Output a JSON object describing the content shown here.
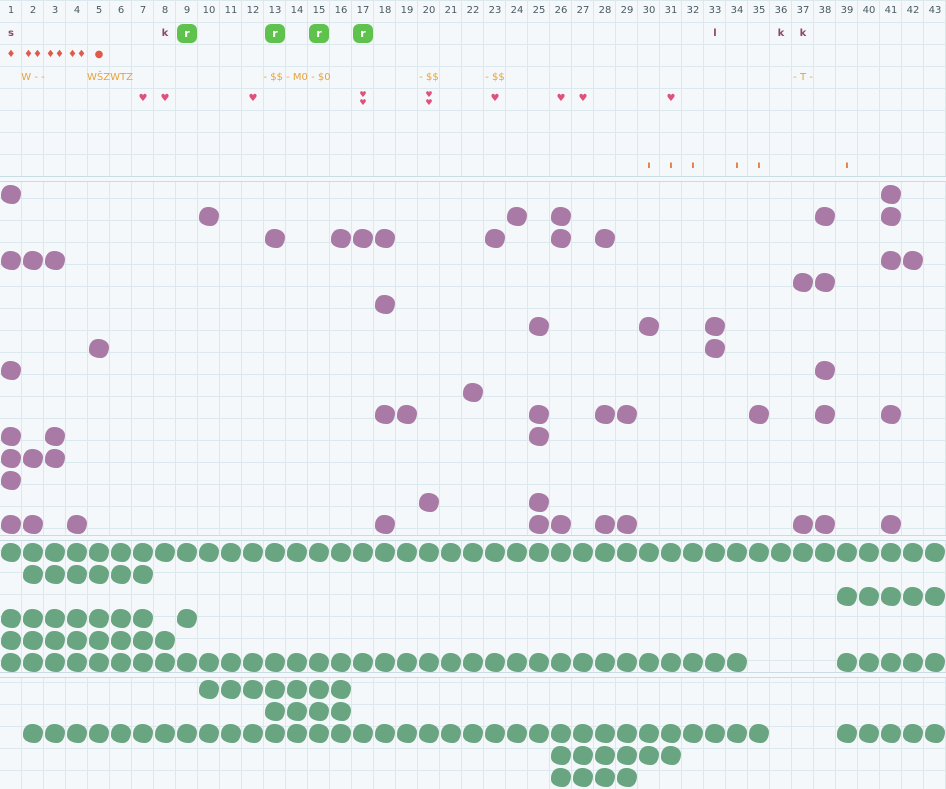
{
  "columns": [
    "1",
    "2",
    "3",
    "4",
    "5",
    "6",
    "7",
    "8",
    "9",
    "10",
    "11",
    "12",
    "13",
    "14",
    "15",
    "16",
    "17",
    "18",
    "19",
    "20",
    "21",
    "22",
    "23",
    "24",
    "25",
    "26",
    "27",
    "28",
    "29",
    "30",
    "31",
    "32",
    "33",
    "34",
    "35",
    "36",
    "37",
    "38",
    "39",
    "40",
    "41",
    "42",
    "43"
  ],
  "palette": {
    "purple_blob": "#a97aa5",
    "green_blob": "#6aa582",
    "green_button": "#5ec24d",
    "heart": "#e0507a",
    "drop": "#e05a4a",
    "orange_text": "#e8a33c",
    "letter": "#8a4a6a",
    "tick": "#e8743c"
  },
  "top_panel": {
    "letters": [
      {
        "col": 1,
        "row": 1,
        "text": "s",
        "kind": "letter"
      },
      {
        "col": 8,
        "row": 1,
        "text": "k",
        "kind": "letter"
      },
      {
        "col": 33,
        "row": 1,
        "text": "l",
        "kind": "letter"
      },
      {
        "col": 36,
        "row": 1,
        "text": "k",
        "kind": "letter"
      },
      {
        "col": 37,
        "row": 1,
        "text": "k",
        "kind": "letter"
      }
    ],
    "buttons": [
      {
        "col": 9,
        "row": 1,
        "text": "r"
      },
      {
        "col": 13,
        "row": 1,
        "text": "r"
      },
      {
        "col": 15,
        "row": 1,
        "text": "r"
      },
      {
        "col": 17,
        "row": 1,
        "text": "r"
      }
    ],
    "drops": [
      {
        "col": 1,
        "row": 2,
        "text": "♦"
      },
      {
        "col": 2,
        "row": 2,
        "text": "♦♦"
      },
      {
        "col": 3,
        "row": 2,
        "text": "♦♦"
      },
      {
        "col": 4,
        "row": 2,
        "text": "♦♦"
      },
      {
        "col": 5,
        "row": 2,
        "text": "●"
      }
    ],
    "orange": [
      {
        "col": 1,
        "row": 3,
        "text": "W - -",
        "span": 3
      },
      {
        "col": 5,
        "row": 3,
        "text": "WŠZWTZ",
        "span": 2
      },
      {
        "col": 13,
        "row": 3,
        "text": "- $$ - M0 - $0",
        "span": 3
      },
      {
        "col": 20,
        "row": 3,
        "text": "- $$",
        "span": 1
      },
      {
        "col": 23,
        "row": 3,
        "text": "- $$",
        "span": 1
      },
      {
        "col": 37,
        "row": 3,
        "text": "- T -",
        "span": 1
      }
    ],
    "hearts": [
      {
        "col": 7,
        "row": 4,
        "text": "♥"
      },
      {
        "col": 8,
        "row": 4,
        "text": "♥"
      },
      {
        "col": 12,
        "row": 4,
        "text": "♥"
      },
      {
        "col": 17,
        "row": 4,
        "text": "♥♥"
      },
      {
        "col": 20,
        "row": 4,
        "text": "♥♥"
      },
      {
        "col": 23,
        "row": 4,
        "text": "♥"
      },
      {
        "col": 26,
        "row": 4,
        "text": "♥"
      },
      {
        "col": 27,
        "row": 4,
        "text": "♥"
      },
      {
        "col": 31,
        "row": 4,
        "text": "♥"
      }
    ],
    "ticks": [
      {
        "col": 30,
        "row": 7,
        "text": "ı"
      },
      {
        "col": 31,
        "row": 7,
        "text": "ı"
      },
      {
        "col": 32,
        "row": 7,
        "text": "ı"
      },
      {
        "col": 34,
        "row": 7,
        "text": "ı"
      },
      {
        "col": 35,
        "row": 7,
        "text": "ı"
      },
      {
        "col": 39,
        "row": 7,
        "text": "ı"
      }
    ]
  },
  "purple_rows": [
    [
      1,
      41
    ],
    [
      10,
      24,
      26,
      38,
      41
    ],
    [
      13,
      16,
      17,
      18,
      23,
      26,
      28
    ],
    [
      1,
      2,
      3,
      41,
      42
    ],
    [
      37,
      38
    ],
    [
      18
    ],
    [
      25,
      30,
      33
    ],
    [
      5,
      33
    ],
    [
      1,
      38
    ],
    [
      22
    ],
    [
      18,
      19,
      25,
      28,
      29,
      35,
      38,
      41
    ],
    [
      1,
      3,
      25
    ],
    [
      1,
      2,
      3
    ],
    [
      1
    ],
    [
      20,
      25
    ],
    [
      1,
      2,
      4,
      18,
      25,
      26,
      28,
      29,
      37,
      38,
      41
    ]
  ],
  "green_rows_a": [
    [
      [
        1,
        43
      ]
    ],
    [
      [
        2,
        7
      ]
    ],
    [
      [
        39,
        43
      ]
    ],
    [
      [
        1,
        7
      ],
      [
        9,
        9
      ]
    ],
    [
      [
        1,
        8
      ]
    ],
    [
      [
        1,
        34
      ],
      [
        39,
        43
      ]
    ]
  ],
  "green_rows_b": [
    [
      [
        10,
        16
      ]
    ],
    [
      [
        13,
        16
      ]
    ],
    [
      [
        2,
        35
      ],
      [
        39,
        43
      ]
    ],
    [
      [
        26,
        31
      ]
    ],
    [
      [
        26,
        29
      ]
    ]
  ]
}
